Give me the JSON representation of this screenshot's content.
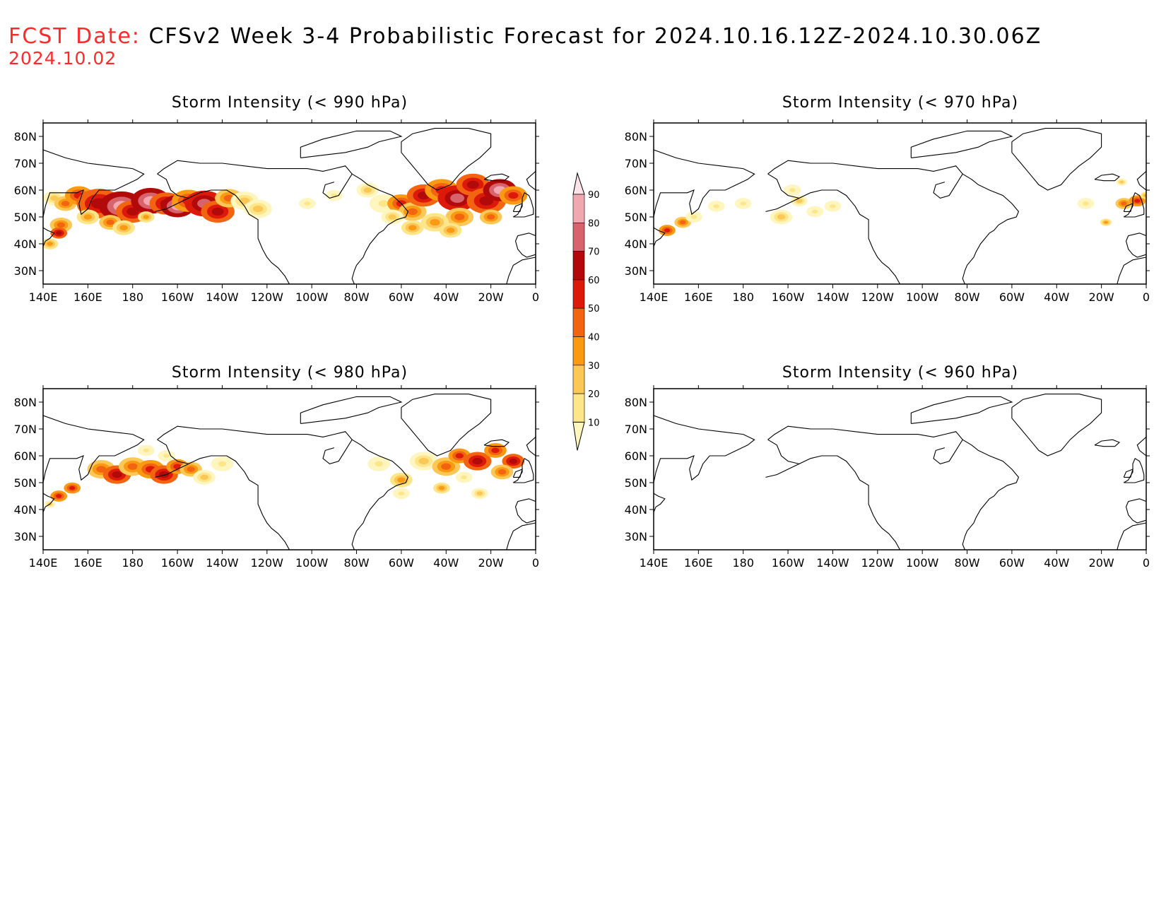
{
  "header": {
    "fcst_label": "FCST Date:",
    "title": "CFSv2 Week 3-4 Probabilistic Forecast for 2024.10.16.12Z-2024.10.30.06Z",
    "fcst_date": "2024.10.02"
  },
  "panels": [
    {
      "id": "p990",
      "title": "Storm Intensity (< 990 hPa)"
    },
    {
      "id": "p970",
      "title": "Storm Intensity (< 970 hPa)"
    },
    {
      "id": "p980",
      "title": "Storm Intensity (< 980 hPa)"
    },
    {
      "id": "p960",
      "title": "Storm Intensity (< 960 hPa)"
    }
  ],
  "axes": {
    "lon_labels": [
      "140E",
      "160E",
      "180",
      "160W",
      "140W",
      "120W",
      "100W",
      "80W",
      "60W",
      "40W",
      "20W",
      "0"
    ],
    "lat_labels": [
      "80N",
      "70N",
      "60N",
      "50N",
      "40N",
      "30N"
    ]
  },
  "colorbar": {
    "levels": [
      "10",
      "20",
      "30",
      "40",
      "50",
      "60",
      "70",
      "80",
      "90"
    ],
    "colors": [
      "#fff5bf",
      "#fde58a",
      "#fbc757",
      "#f99a12",
      "#f26410",
      "#dd1a0a",
      "#b20a0a",
      "#d7646d",
      "#f0a7b0",
      "#fde3e8"
    ]
  }
}
